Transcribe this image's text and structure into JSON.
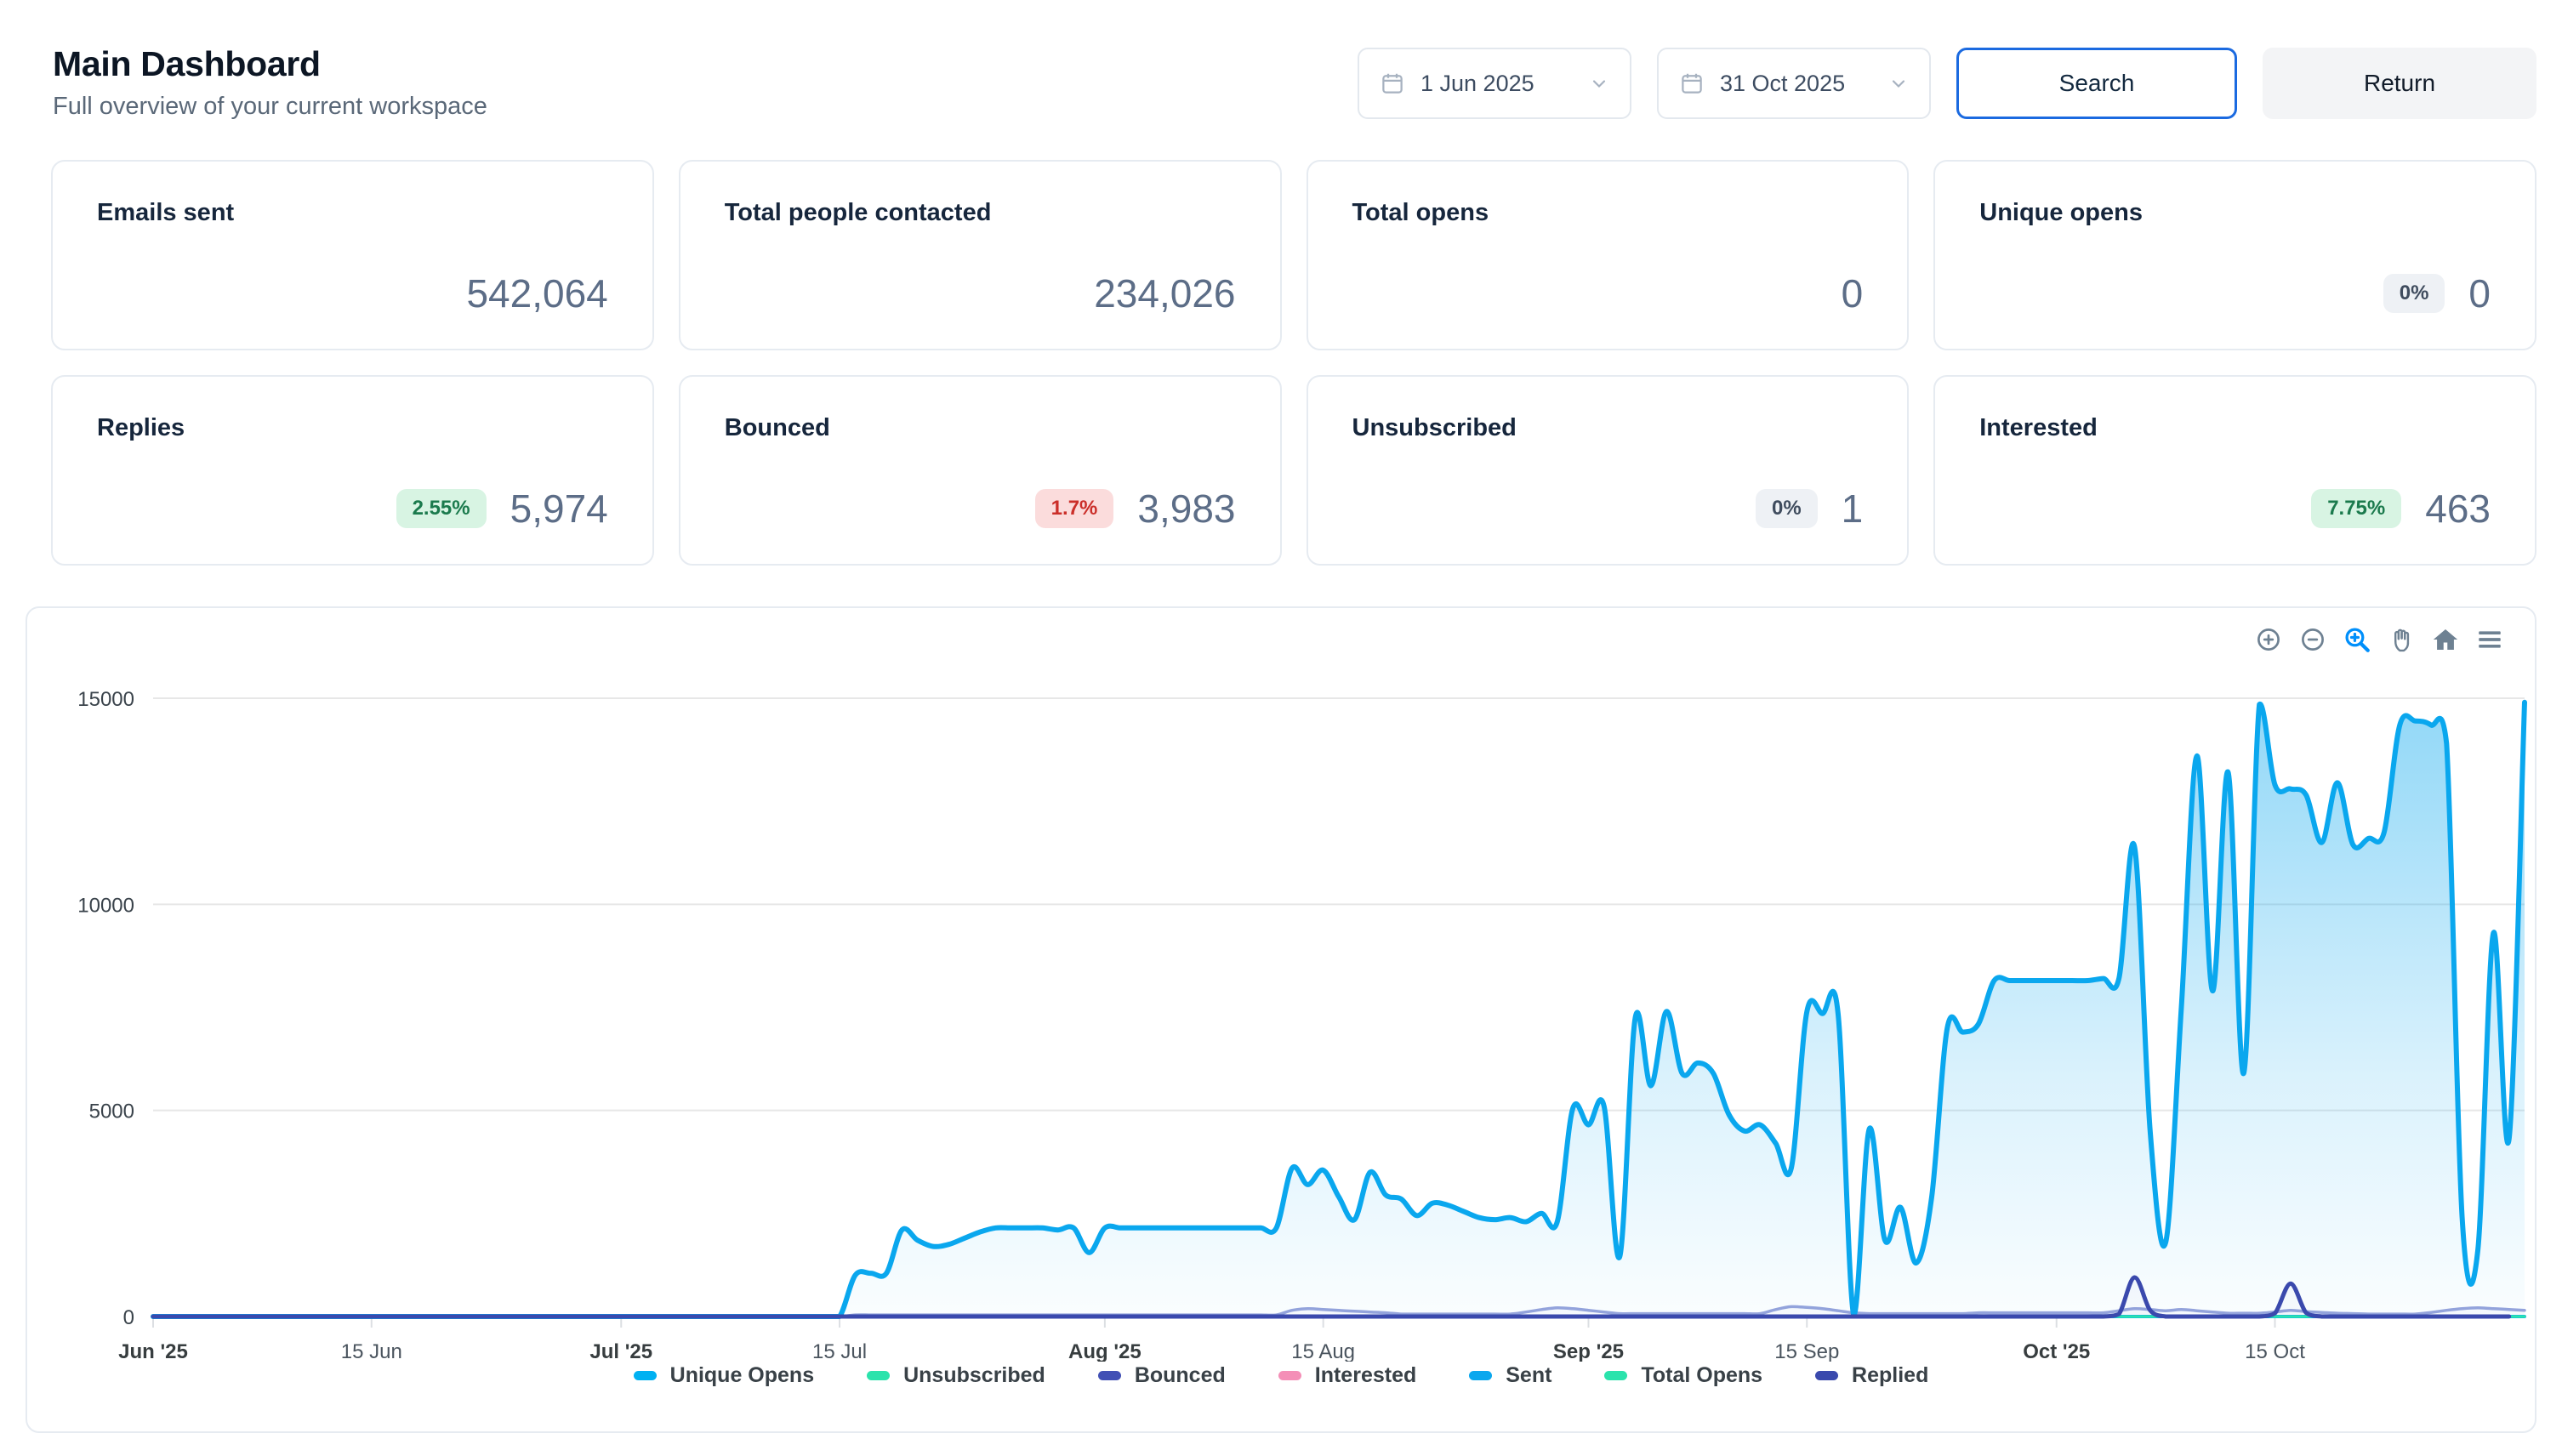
{
  "header": {
    "title": "Main Dashboard",
    "subtitle": "Full overview of your current workspace"
  },
  "controls": {
    "date_from": "1 Jun 2025",
    "date_to": "31 Oct 2025",
    "search_label": "Search",
    "return_label": "Return"
  },
  "stats": [
    {
      "label": "Emails sent",
      "value": "542,064"
    },
    {
      "label": "Total people contacted",
      "value": "234,026"
    },
    {
      "label": "Total opens",
      "value": "0"
    },
    {
      "label": "Unique opens",
      "value": "0",
      "badge": "0%",
      "badge_type": "neutral"
    },
    {
      "label": "Replies",
      "value": "5,974",
      "badge": "2.55%",
      "badge_type": "positive"
    },
    {
      "label": "Bounced",
      "value": "3,983",
      "badge": "1.7%",
      "badge_type": "negative"
    },
    {
      "label": "Unsubscribed",
      "value": "1",
      "badge": "0%",
      "badge_type": "neutral"
    },
    {
      "label": "Interested",
      "value": "463",
      "badge": "7.75%",
      "badge_type": "positive"
    }
  ],
  "chart_data": {
    "type": "area",
    "title": "",
    "xlabel": "",
    "ylabel": "",
    "ylim": [
      0,
      15000
    ],
    "grid": "horizontal",
    "legend_position": "bottom",
    "x_days": 153,
    "x_ticks": [
      {
        "day": 0,
        "label": "Jun '25",
        "bold": true
      },
      {
        "day": 14,
        "label": "15 Jun",
        "bold": false
      },
      {
        "day": 30,
        "label": "Jul '25",
        "bold": true
      },
      {
        "day": 44,
        "label": "15 Jul",
        "bold": false
      },
      {
        "day": 61,
        "label": "Aug '25",
        "bold": true
      },
      {
        "day": 75,
        "label": "15 Aug",
        "bold": false
      },
      {
        "day": 92,
        "label": "Sep '25",
        "bold": true
      },
      {
        "day": 106,
        "label": "15 Sep",
        "bold": false
      },
      {
        "day": 122,
        "label": "Oct '25",
        "bold": true
      },
      {
        "day": 136,
        "label": "15 Oct",
        "bold": false
      }
    ],
    "y_ticks": [
      {
        "value": 15000,
        "label": "15000"
      },
      {
        "value": 10000,
        "label": "10000"
      },
      {
        "value": 5000,
        "label": "5000"
      },
      {
        "value": 0,
        "label": "0"
      }
    ],
    "toolbar_icons": [
      "zoom-in-icon",
      "zoom-out-icon",
      "selection-zoom-icon",
      "pan-icon",
      "home-icon",
      "menu-icon"
    ],
    "series": [
      {
        "name": "Unique Opens",
        "color": "#00b1f2",
        "flat_value": 0
      },
      {
        "name": "Unsubscribed",
        "color": "#2be3ac",
        "flat_value": 0
      },
      {
        "name": "Bounced",
        "color": "#4150b5",
        "line_color": "#96a3db",
        "values": [
          0,
          0,
          0,
          0,
          0,
          0,
          0,
          0,
          0,
          0,
          0,
          0,
          0,
          0,
          0,
          0,
          0,
          0,
          0,
          0,
          0,
          0,
          0,
          0,
          0,
          0,
          0,
          0,
          0,
          0,
          0,
          0,
          0,
          0,
          0,
          0,
          0,
          0,
          0,
          0,
          0,
          0,
          0,
          0,
          0,
          40,
          40,
          40,
          40,
          40,
          40,
          40,
          40,
          40,
          40,
          40,
          40,
          40,
          40,
          40,
          40,
          40,
          40,
          40,
          40,
          40,
          40,
          40,
          40,
          40,
          40,
          40,
          40,
          150,
          190,
          170,
          150,
          130,
          110,
          90,
          60,
          60,
          60,
          60,
          60,
          60,
          60,
          60,
          110,
          170,
          210,
          190,
          150,
          110,
          70,
          70,
          70,
          70,
          70,
          70,
          70,
          70,
          70,
          70,
          170,
          240,
          220,
          190,
          140,
          90,
          70,
          70,
          70,
          70,
          70,
          70,
          70,
          90,
          90,
          90,
          90,
          90,
          90,
          90,
          90,
          90,
          140,
          190,
          170,
          140,
          170,
          140,
          110,
          80,
          80,
          80,
          110,
          150,
          120,
          100,
          80,
          70,
          60,
          60,
          60,
          60,
          100,
          150,
          190,
          210,
          190,
          170,
          150
        ]
      },
      {
        "name": "Interested",
        "color": "#f48fb7",
        "flat_value": 0
      },
      {
        "name": "Sent",
        "color": "#0aa7ee",
        "values": [
          0,
          0,
          0,
          0,
          0,
          0,
          0,
          0,
          0,
          0,
          0,
          0,
          0,
          0,
          0,
          0,
          0,
          0,
          0,
          0,
          0,
          0,
          0,
          0,
          0,
          0,
          0,
          0,
          0,
          0,
          0,
          0,
          0,
          0,
          0,
          0,
          0,
          0,
          0,
          0,
          0,
          0,
          0,
          0,
          0,
          1000,
          1050,
          1050,
          2100,
          1850,
          1700,
          1750,
          1900,
          2050,
          2150,
          2150,
          2150,
          2150,
          2100,
          2150,
          1550,
          2150,
          2150,
          2150,
          2150,
          2150,
          2150,
          2150,
          2150,
          2150,
          2150,
          2150,
          2150,
          3600,
          3200,
          3550,
          2900,
          2350,
          3500,
          2950,
          2850,
          2450,
          2750,
          2700,
          2550,
          2400,
          2350,
          2400,
          2300,
          2500,
          2300,
          5050,
          4650,
          5100,
          1450,
          7250,
          5600,
          7400,
          5900,
          6150,
          5900,
          4900,
          4500,
          4650,
          4200,
          3600,
          7400,
          7350,
          7350,
          30,
          4550,
          1850,
          2650,
          1300,
          2900,
          7000,
          6900,
          7100,
          8150,
          8150,
          8150,
          8150,
          8150,
          8150,
          8150,
          8200,
          8200,
          11400,
          4500,
          1800,
          7500,
          13600,
          7900,
          13200,
          5900,
          14850,
          12900,
          12800,
          12650,
          11500,
          12950,
          11450,
          11600,
          11750,
          14350,
          14450,
          14350,
          13900,
          2400,
          1600,
          9300,
          4300,
          14900
        ]
      },
      {
        "name": "Total Opens",
        "color": "#2be3ac",
        "flat_value": 0
      },
      {
        "name": "Replied",
        "color": "#3a49ad",
        "values": [
          0,
          0,
          0,
          0,
          0,
          0,
          0,
          0,
          0,
          0,
          0,
          0,
          0,
          0,
          0,
          0,
          0,
          0,
          0,
          0,
          0,
          0,
          0,
          0,
          0,
          0,
          0,
          0,
          0,
          0,
          0,
          0,
          0,
          0,
          0,
          0,
          0,
          0,
          0,
          0,
          0,
          0,
          0,
          0,
          0,
          0,
          0,
          0,
          0,
          0,
          0,
          0,
          0,
          0,
          0,
          0,
          0,
          0,
          0,
          0,
          0,
          0,
          0,
          0,
          0,
          0,
          0,
          0,
          0,
          0,
          0,
          0,
          0,
          0,
          0,
          0,
          0,
          0,
          0,
          0,
          0,
          0,
          0,
          0,
          0,
          0,
          0,
          0,
          0,
          0,
          0,
          0,
          0,
          0,
          0,
          0,
          0,
          0,
          0,
          0,
          0,
          0,
          0,
          0,
          0,
          0,
          0,
          0,
          0,
          0,
          0,
          0,
          0,
          0,
          0,
          0,
          0,
          0,
          0,
          0,
          0,
          0,
          0,
          0,
          0,
          0,
          60,
          950,
          150,
          0,
          0,
          0,
          0,
          0,
          0,
          0,
          80,
          800,
          90,
          0,
          0,
          0,
          0,
          0,
          0,
          0,
          0,
          0,
          0,
          0,
          0,
          0
        ]
      }
    ]
  }
}
